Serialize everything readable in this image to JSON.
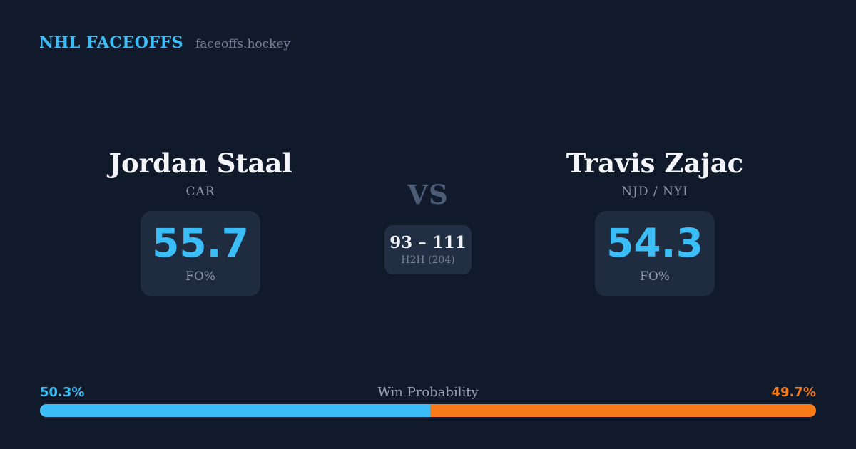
{
  "brand": {
    "title": "NHL FACEOFFS",
    "domain": "faceoffs.hockey"
  },
  "matchup": {
    "left": {
      "name": "Jordan Staal",
      "team": "CAR",
      "fo_pct": "55.7",
      "stat_label": "FO%"
    },
    "vs_label": "VS",
    "h2h": {
      "score": "93 – 111",
      "label": "H2H (204)"
    },
    "right": {
      "name": "Travis Zajac",
      "team": "NJD / NYI",
      "fo_pct": "54.3",
      "stat_label": "FO%"
    }
  },
  "win_probability": {
    "label": "Win Probability",
    "left_pct_text": "50.3%",
    "right_pct_text": "49.7%",
    "left_value": 50.3,
    "right_value": 49.7
  },
  "colors": {
    "background": "#111a2b",
    "card_background": "#1f2b3e",
    "accent_blue": "#3bbdf8",
    "accent_orange": "#f87a18",
    "text_primary": "#f2f4f8",
    "text_muted": "#8d96aa",
    "vs_muted": "#4d5c77"
  }
}
